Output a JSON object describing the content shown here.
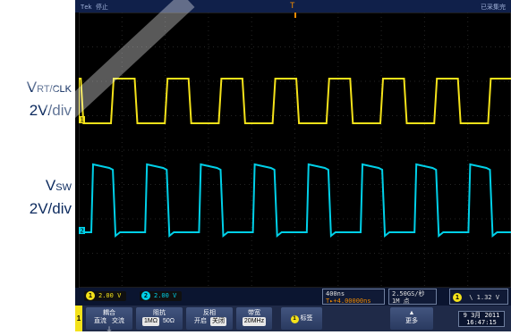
{
  "signals": {
    "ch1": {
      "name": "V",
      "name_sub": "RT/CLK",
      "scale": "2V/div",
      "color": "#f4e21a"
    },
    "ch2": {
      "name": "V",
      "name_sub": "SW",
      "scale": "2V/div",
      "color": "#00d0e8"
    }
  },
  "scope": {
    "title": "Tek 停止",
    "acq_state": "已采集完",
    "trigger_marker": "T",
    "ch1_marker": "1",
    "ch2_marker": "2",
    "readouts": {
      "ch1_badge": "1",
      "ch1_value": "2.00 V",
      "ch2_badge": "2",
      "ch2_value": "2.00 V",
      "timebase": "400ns",
      "delay": "T▸+4.00000ns",
      "sample_rate": "2.50GS/秒",
      "record_length": "1M 点",
      "trigger_badge": "1",
      "trigger_slope": "\\",
      "trigger_level": "1.32 V"
    },
    "menu": {
      "ch_tab": "1",
      "coupling": {
        "label": "耦合",
        "options": [
          "直流",
          "交流",
          "⏚"
        ]
      },
      "impedance": {
        "label": "阻抗",
        "options": [
          "1MΩ",
          "50Ω"
        ]
      },
      "invert": {
        "label": "反相",
        "options": [
          "开启",
          "关闭"
        ]
      },
      "bandwidth": {
        "label": "带宽",
        "value": "20MHz"
      },
      "label_btn": {
        "icon": "1",
        "label": "标签"
      },
      "more": {
        "label": "更多"
      },
      "date": "9 3月 2011",
      "time": "16:47:15"
    }
  }
}
